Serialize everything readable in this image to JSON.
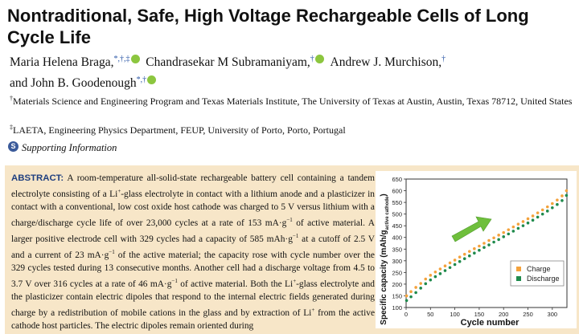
{
  "title": "Nontraditional, Safe, High Voltage Rechargeable Cells of Long Cycle Life",
  "authors": [
    {
      "name": "Maria Helena Braga,",
      "marks": "*,†,‡"
    },
    {
      "name": "Chandrasekar M Subramaniyam,",
      "marks": "†"
    },
    {
      "name": "Andrew J. Murchison,",
      "marks": "†"
    },
    {
      "name": "and John B. Goodenough",
      "marks": "*,†"
    }
  ],
  "affiliations": [
    {
      "mark": "†",
      "text": "Materials Science and Engineering Program and Texas Materials Institute, The University of Texas at Austin, Austin, Texas 78712, United States"
    },
    {
      "mark": "‡",
      "text": "LAETA, Engineering Physics Department, FEUP, University of Porto, Porto, Portugal"
    }
  ],
  "supporting_info": {
    "icon": "S",
    "label": "Supporting Information"
  },
  "abstract": {
    "heading": "ABSTRACT:",
    "segments": [
      " A room-temperature all-solid-state rechargeable battery cell containing a tandem electrolyte consisting of a Li",
      "+",
      "-glass electrolyte in contact with a lithium anode and a plasticizer in contact with a conventional, low cost oxide host cathode was charged to 5 V versus lithium with a charge/discharge cycle life of over 23,000 cycles at a rate of 153 mA·g",
      "−1",
      " of active material. A larger positive electrode cell with 329 cycles had a capacity of 585 mAh·g",
      "−1",
      " at a cutoff of 2.5 V and a current of 23 mA·g",
      "−1",
      " of the active material; the capacity rose with cycle number over the 329 cycles tested during 13 consecutive months. Another cell had a discharge voltage from 4.5 to 3.7 V over 316 cycles at a rate of 46 mA·g",
      "−1",
      " of active material. Both the Li",
      "+",
      "-glass electrolyte and the plasticizer contain electric dipoles that respond to the internal electric fields generated during charge by a redistribution of mobile cations in the glass and by extraction of Li",
      "+",
      " from the active cathode host particles. The electric dipoles remain oriented during"
    ]
  },
  "chart_data": {
    "type": "scatter",
    "xlabel": "Cycle number",
    "ylabel": "Specific capacity (mAh/g",
    "ylabel_sub": "active cathode",
    "ylabel_end": ")",
    "xlim": [
      0,
      330
    ],
    "ylim": [
      100,
      650
    ],
    "xticks": [
      "0",
      "50",
      "100",
      "150",
      "200",
      "250",
      "300"
    ],
    "yticks": [
      "100",
      "150",
      "200",
      "250",
      "300",
      "350",
      "400",
      "450",
      "500",
      "550",
      "600",
      "650"
    ],
    "series": [
      {
        "name": "Charge",
        "color": "#f4a23c",
        "x": [
          1,
          10,
          20,
          30,
          40,
          50,
          60,
          70,
          80,
          90,
          100,
          110,
          120,
          130,
          140,
          150,
          160,
          170,
          180,
          190,
          200,
          210,
          220,
          230,
          240,
          250,
          260,
          270,
          280,
          290,
          300,
          310,
          320,
          329
        ],
        "y": [
          150,
          168,
          186,
          203,
          222,
          238,
          252,
          265,
          278,
          291,
          303,
          316,
          328,
          340,
          352,
          363,
          375,
          387,
          398,
          410,
          421,
          433,
          445,
          457,
          468,
          480,
          492,
          505,
          518,
          531,
          545,
          560,
          578,
          600
        ]
      },
      {
        "name": "Discharge",
        "color": "#1f8a4c",
        "x": [
          1,
          10,
          20,
          30,
          40,
          50,
          60,
          70,
          80,
          90,
          100,
          110,
          120,
          130,
          140,
          150,
          160,
          170,
          180,
          190,
          200,
          210,
          220,
          230,
          240,
          250,
          260,
          270,
          280,
          290,
          300,
          310,
          320,
          329
        ],
        "y": [
          130,
          146,
          164,
          183,
          202,
          218,
          232,
          245,
          258,
          271,
          284,
          297,
          309,
          321,
          333,
          345,
          357,
          368,
          380,
          391,
          403,
          415,
          427,
          439,
          450,
          462,
          474,
          487,
          500,
          513,
          527,
          541,
          558,
          580
        ]
      }
    ],
    "legend": "bottom-right",
    "arrow_color": "#6fbf3c"
  }
}
